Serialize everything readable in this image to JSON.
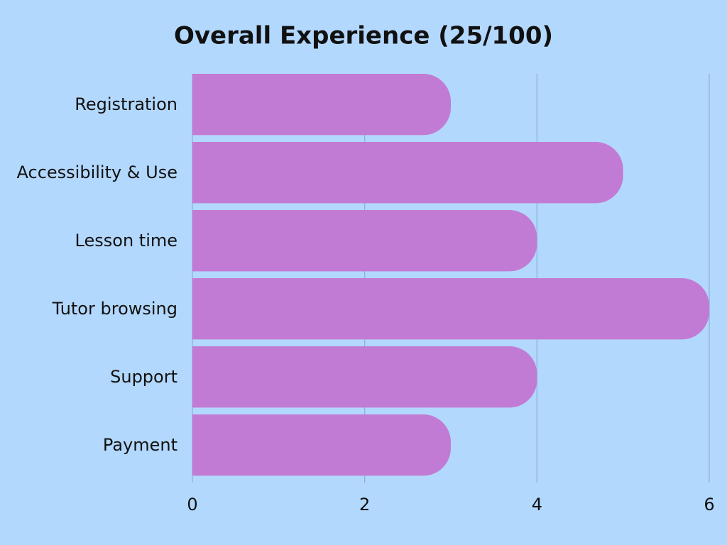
{
  "chart_data": {
    "type": "hbar",
    "title": "Overall Experience (25/100)",
    "categories": [
      "Registration",
      "Accessibility & Use",
      "Lesson time",
      "Tutor browsing",
      "Support",
      "Payment"
    ],
    "values": [
      3,
      5,
      4,
      6,
      4,
      3
    ],
    "color": "#c27bd4",
    "xlim": [
      0,
      6
    ],
    "xticks": [
      0,
      2,
      4,
      6
    ],
    "grid": true
  }
}
